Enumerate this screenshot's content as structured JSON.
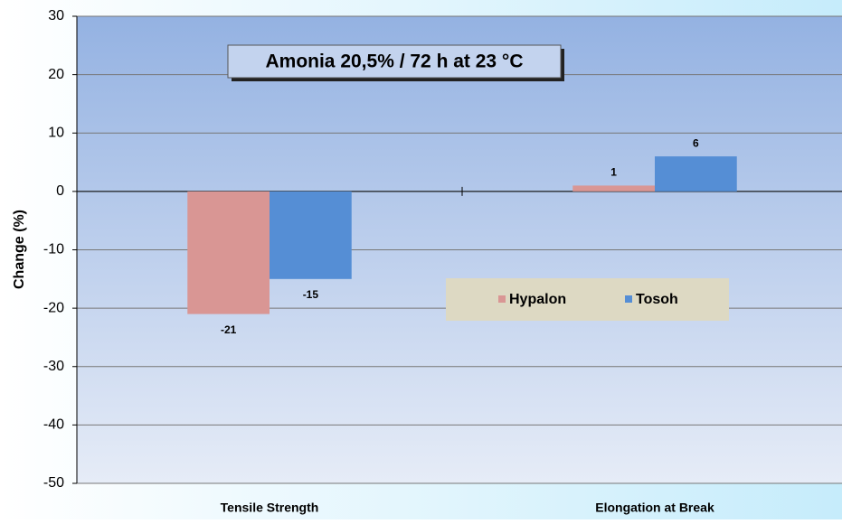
{
  "chart_data": {
    "type": "bar",
    "title": "Amonia 20,5% / 72 h at 23 °C",
    "y_label": "Change (%)",
    "categories": [
      "Tensile Strength",
      "Elongation at Break"
    ],
    "series": [
      {
        "name": "Hypalon",
        "color": "#d99694",
        "values": [
          -21,
          1
        ]
      },
      {
        "name": "Tosoh",
        "color": "#558ed5",
        "values": [
          -15,
          6
        ]
      }
    ],
    "ylim": [
      -50,
      30
    ],
    "yticks": [
      -50,
      -40,
      -30,
      -20,
      -10,
      0,
      10,
      20,
      30
    ],
    "grid": true
  }
}
